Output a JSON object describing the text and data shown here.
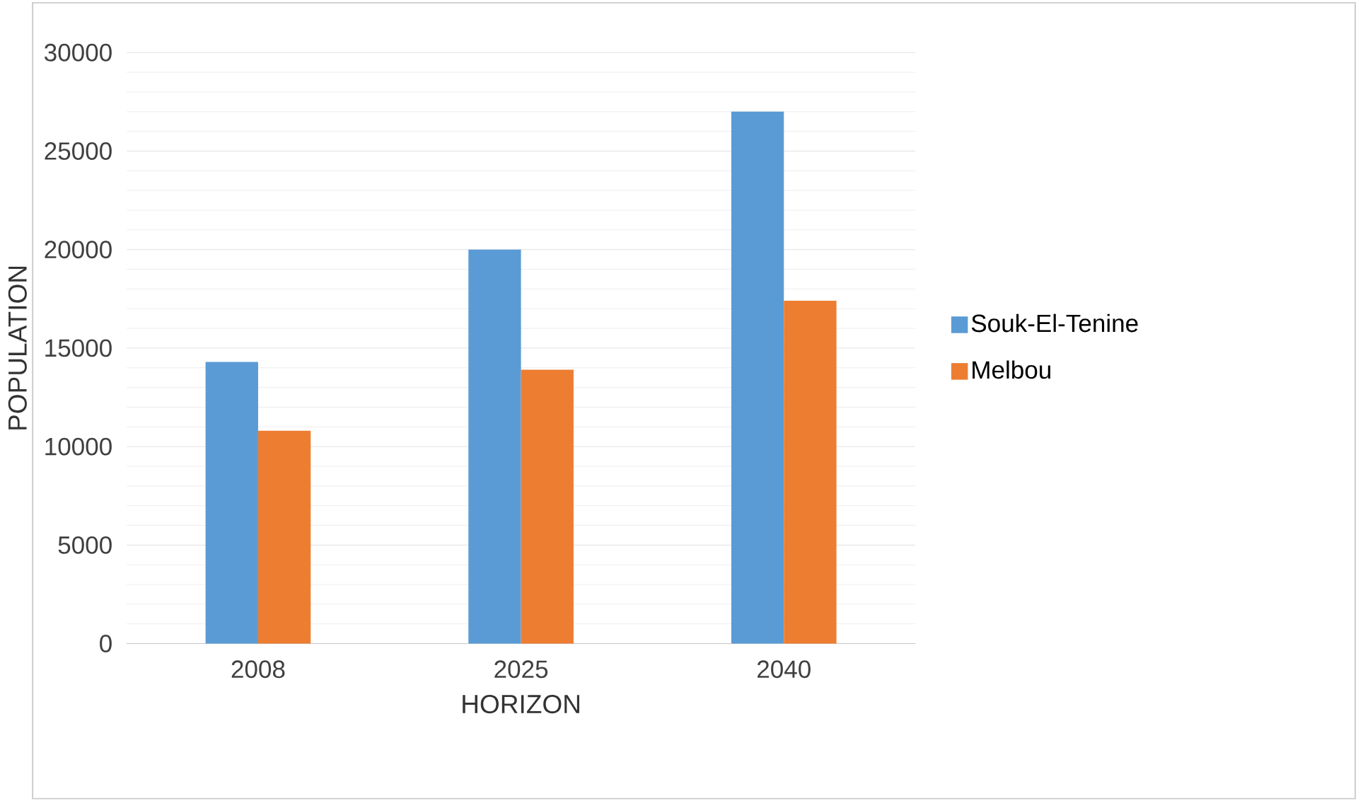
{
  "chart_data": {
    "type": "bar",
    "xlabel": "HORIZON",
    "ylabel": "POPULATION",
    "categories": [
      "2008",
      "2025",
      "2040"
    ],
    "series": [
      {
        "name": "Souk-El-Tenine",
        "color": "#5b9bd5",
        "values": [
          14300,
          20000,
          27000
        ]
      },
      {
        "name": "Melbou",
        "color": "#ed7d31",
        "values": [
          10800,
          13900,
          17400
        ]
      }
    ],
    "ylim": [
      0,
      30000
    ],
    "yticks": [
      0,
      5000,
      10000,
      15000,
      20000,
      25000,
      30000
    ],
    "grid": "y",
    "legend": "right"
  }
}
